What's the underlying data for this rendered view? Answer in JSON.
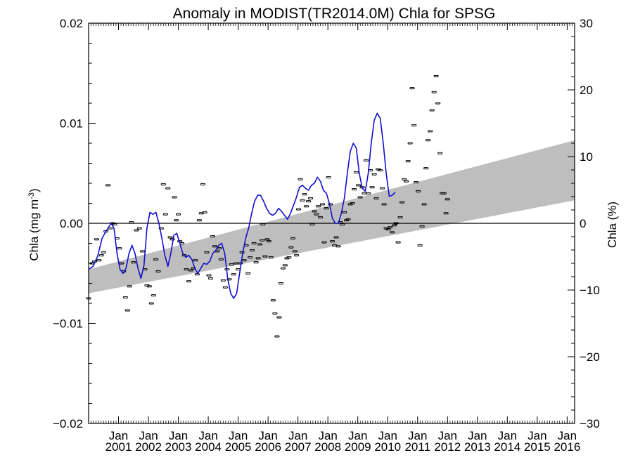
{
  "chart_data": {
    "type": "line",
    "title": "Anomaly in MODIST(TR2014.0M) Chla for SPSG",
    "ylabel_left": "Chla (mg m",
    "ylabel_left_sup": "-3",
    "ylabel_left_close": ")",
    "ylabel_right": "Chla (%)",
    "xlim": [
      2000.0,
      2016.25
    ],
    "ylim_left": [
      -0.02,
      0.02
    ],
    "ylim_right": [
      -30,
      30
    ],
    "left_ticks": [
      {
        "value": 0.02,
        "label": "0.02"
      },
      {
        "value": 0.01,
        "label": "0.01"
      },
      {
        "value": 0.0,
        "label": "0.00"
      },
      {
        "value": -0.01,
        "label": "−0.01"
      },
      {
        "value": -0.02,
        "label": "−0.02"
      }
    ],
    "right_ticks": [
      {
        "value": 30,
        "label": "30"
      },
      {
        "value": 20,
        "label": "20"
      },
      {
        "value": 10,
        "label": "10"
      },
      {
        "value": 0,
        "label": "0"
      },
      {
        "value": -10,
        "label": "−10"
      },
      {
        "value": -20,
        "label": "−20"
      },
      {
        "value": -30,
        "label": "−30"
      }
    ],
    "x_ticks": [
      {
        "value": 2001,
        "month": "Jan",
        "year": "2001"
      },
      {
        "value": 2002,
        "month": "Jan",
        "year": "2002"
      },
      {
        "value": 2003,
        "month": "Jan",
        "year": "2003"
      },
      {
        "value": 2004,
        "month": "Jan",
        "year": "2004"
      },
      {
        "value": 2005,
        "month": "Jan",
        "year": "2005"
      },
      {
        "value": 2006,
        "month": "Jan",
        "year": "2006"
      },
      {
        "value": 2007,
        "month": "Jan",
        "year": "2007"
      },
      {
        "value": 2008,
        "month": "Jan",
        "year": "2008"
      },
      {
        "value": 2009,
        "month": "Jan",
        "year": "2009"
      },
      {
        "value": 2010,
        "month": "Jan",
        "year": "2010"
      },
      {
        "value": 2011,
        "month": "Jan",
        "year": "2011"
      },
      {
        "value": 2012,
        "month": "Jan",
        "year": "2012"
      },
      {
        "value": 2013,
        "month": "Jan",
        "year": "2013"
      },
      {
        "value": 2014,
        "month": "Jan",
        "year": "2014"
      },
      {
        "value": 2015,
        "month": "Jan",
        "year": "2015"
      },
      {
        "value": 2016,
        "month": "Jan",
        "year": "2016"
      }
    ],
    "trend_band": {
      "x": [
        2000.0,
        2016.25
      ],
      "upper": [
        -0.0046,
        0.0083
      ],
      "lower": [
        -0.007,
        0.0023
      ],
      "color": "#bebebe"
    },
    "zero_line": 0.0,
    "monthly_points": [
      [
        2000.0,
        -0.0075
      ],
      [
        2000.12,
        -0.004
      ],
      [
        2000.2,
        -0.0038
      ],
      [
        2000.27,
        -0.0016
      ],
      [
        2000.35,
        -0.0037
      ],
      [
        2000.43,
        -0.0032
      ],
      [
        2000.5,
        -0.0029
      ],
      [
        2000.58,
        -0.0008
      ],
      [
        2000.65,
        0.0038
      ],
      [
        2000.72,
        -0.0005
      ],
      [
        2000.8,
        0.0
      ],
      [
        2000.87,
        -0.0001
      ],
      [
        2000.95,
        -0.0015
      ],
      [
        2001.03,
        -0.0025
      ],
      [
        2001.1,
        -0.004
      ],
      [
        2001.17,
        -0.0048
      ],
      [
        2001.23,
        -0.0074
      ],
      [
        2001.3,
        -0.0087
      ],
      [
        2001.37,
        -0.0063
      ],
      [
        2001.43,
        0.0001
      ],
      [
        2001.5,
        -0.0039
      ],
      [
        2001.6,
        -0.0007
      ],
      [
        2001.7,
        -0.0005
      ],
      [
        2001.8,
        -0.0028
      ],
      [
        2001.88,
        -0.0046
      ],
      [
        2001.95,
        -0.0062
      ],
      [
        2002.03,
        -0.0063
      ],
      [
        2002.1,
        -0.008
      ],
      [
        2002.17,
        -0.0072
      ],
      [
        2002.25,
        -0.0036
      ],
      [
        2002.33,
        -0.0048
      ],
      [
        2002.43,
        -0.0005
      ],
      [
        2002.5,
        0.0039
      ],
      [
        2002.57,
        0.0009
      ],
      [
        2002.65,
        0.0035
      ],
      [
        2002.73,
        -0.0014
      ],
      [
        2002.8,
        -0.0016
      ],
      [
        2002.87,
        0.0026
      ],
      [
        2002.93,
        0.0003
      ],
      [
        2003.0,
        0.0009
      ],
      [
        2003.05,
        -0.0018
      ],
      [
        2003.12,
        -0.002
      ],
      [
        2003.2,
        -0.0032
      ],
      [
        2003.27,
        -0.0046
      ],
      [
        2003.35,
        -0.0058
      ],
      [
        2003.42,
        -0.0047
      ],
      [
        2003.5,
        -0.0045
      ],
      [
        2003.57,
        -0.0037
      ],
      [
        2003.63,
        -0.0051
      ],
      [
        2003.7,
        0.0003
      ],
      [
        2003.77,
        0.001
      ],
      [
        2003.82,
        0.0039
      ],
      [
        2003.88,
        0.0011
      ],
      [
        2003.95,
        -0.0029
      ],
      [
        2004.02,
        -0.0052
      ],
      [
        2004.08,
        -0.0055
      ],
      [
        2004.15,
        -0.0013
      ],
      [
        2004.22,
        -0.0023
      ],
      [
        2004.3,
        -0.0028
      ],
      [
        2004.37,
        -0.0025
      ],
      [
        2004.43,
        -0.0036
      ],
      [
        2004.5,
        -0.0057
      ],
      [
        2004.57,
        -0.0064
      ],
      [
        2004.63,
        -0.0046
      ],
      [
        2004.7,
        -0.0056
      ],
      [
        2004.78,
        -0.0041
      ],
      [
        2004.85,
        -0.0051
      ],
      [
        2004.92,
        -0.004
      ],
      [
        2005.0,
        -0.0046
      ],
      [
        2005.07,
        -0.004
      ],
      [
        2005.13,
        -0.0029
      ],
      [
        2005.2,
        -0.0037
      ],
      [
        2005.27,
        -0.0022
      ],
      [
        2005.33,
        -0.005
      ],
      [
        2005.4,
        -0.0034
      ],
      [
        2005.47,
        -0.0027
      ],
      [
        2005.53,
        -0.002
      ],
      [
        2005.6,
        -0.0039
      ],
      [
        2005.67,
        -0.0035
      ],
      [
        2005.73,
        -0.0021
      ],
      [
        2005.8,
        -0.0017
      ],
      [
        2005.83,
        -0.0001
      ],
      [
        2005.9,
        -0.0033
      ],
      [
        2005.97,
        -0.0016
      ],
      [
        2006.03,
        -0.0018
      ],
      [
        2006.1,
        -0.0034
      ],
      [
        2006.17,
        -0.0077
      ],
      [
        2006.23,
        -0.009
      ],
      [
        2006.3,
        -0.0113
      ],
      [
        2006.37,
        -0.0094
      ],
      [
        2006.43,
        -0.006
      ],
      [
        2006.5,
        -0.0045
      ],
      [
        2006.57,
        -0.0042
      ],
      [
        2006.63,
        -0.0035
      ],
      [
        2006.7,
        -0.0034
      ],
      [
        2006.77,
        -0.0024
      ],
      [
        2006.83,
        -0.0015
      ],
      [
        2006.9,
        -0.0028
      ],
      [
        2006.95,
        -0.0032
      ],
      [
        2007.02,
        0.0014
      ],
      [
        2007.08,
        0.0044
      ],
      [
        2007.15,
        0.0023
      ],
      [
        2007.22,
        0.0029
      ],
      [
        2007.28,
        0.0017
      ],
      [
        2007.35,
        0.0022
      ],
      [
        2007.42,
        0.0025
      ],
      [
        2007.48,
        -0.0001
      ],
      [
        2007.55,
        0.0012
      ],
      [
        2007.62,
        0.0009
      ],
      [
        2007.68,
        0.0017
      ],
      [
        2007.75,
        0.0006
      ],
      [
        2007.82,
        0.0019
      ],
      [
        2007.88,
        -0.0019
      ],
      [
        2007.95,
        0.0015
      ],
      [
        2008.02,
        0.0046
      ],
      [
        2008.08,
        0.0019
      ],
      [
        2008.15,
        -0.0018
      ],
      [
        2008.22,
        -0.0022
      ],
      [
        2008.28,
        -0.0014
      ],
      [
        2008.35,
        -0.0023
      ],
      [
        2008.42,
        0.0001
      ],
      [
        2008.48,
        -0.0001
      ],
      [
        2008.55,
        0.0011
      ],
      [
        2008.62,
        0.0003
      ],
      [
        2008.68,
        0.0004
      ],
      [
        2008.75,
        0.0019
      ],
      [
        2008.82,
        0.002
      ],
      [
        2008.88,
        0.0034
      ],
      [
        2008.95,
        0.0051
      ],
      [
        2009.02,
        0.0038
      ],
      [
        2009.08,
        0.0026
      ],
      [
        2009.15,
        0.0036
      ],
      [
        2009.22,
        0.003
      ],
      [
        2009.28,
        0.0063
      ],
      [
        2009.35,
        0.003
      ],
      [
        2009.42,
        0.0053
      ],
      [
        2009.48,
        0.0036
      ],
      [
        2009.55,
        0.0049
      ],
      [
        2009.62,
        0.0025
      ],
      [
        2009.68,
        0.0054
      ],
      [
        2009.75,
        0.0053
      ],
      [
        2009.82,
        0.0035
      ],
      [
        2009.88,
        0.0019
      ],
      [
        2009.95,
        -0.0005
      ],
      [
        2010.02,
        -0.0006
      ],
      [
        2010.08,
        -0.0004
      ],
      [
        2010.15,
        -0.0009
      ],
      [
        2010.22,
        -0.0002
      ],
      [
        2010.28,
        0.0
      ],
      [
        2010.35,
        -0.0019
      ],
      [
        2010.42,
        0.0006
      ],
      [
        2010.48,
        0.0021
      ],
      [
        2010.55,
        0.0044
      ],
      [
        2010.62,
        0.0042
      ],
      [
        2010.68,
        0.0062
      ],
      [
        2010.75,
        0.008
      ],
      [
        2010.82,
        0.0135
      ],
      [
        2010.88,
        0.0098
      ],
      [
        2010.95,
        0.0041
      ],
      [
        2011.02,
        0.0032
      ],
      [
        2011.08,
        -0.0022
      ],
      [
        2011.15,
        -0.0003
      ],
      [
        2011.22,
        0.0019
      ],
      [
        2011.28,
        0.0055
      ],
      [
        2011.35,
        0.0083
      ],
      [
        2011.42,
        0.0092
      ],
      [
        2011.48,
        0.0113
      ],
      [
        2011.55,
        0.0131
      ],
      [
        2011.62,
        0.0147
      ],
      [
        2011.68,
        0.012
      ],
      [
        2011.75,
        0.007
      ],
      [
        2011.82,
        0.003
      ],
      [
        2011.88,
        0.003
      ],
      [
        2011.95,
        0.001
      ],
      [
        2012.0,
        0.0024
      ]
    ],
    "smooth_line": {
      "color": "#1010d0",
      "points": [
        [
          2000.0,
          -0.0046
        ],
        [
          2000.15,
          -0.0043
        ],
        [
          2000.3,
          -0.0033
        ],
        [
          2000.45,
          -0.0015
        ],
        [
          2000.6,
          -0.0007
        ],
        [
          2000.75,
          0.0
        ],
        [
          2000.85,
          -0.0005
        ],
        [
          2000.95,
          -0.003
        ],
        [
          2001.05,
          -0.0046
        ],
        [
          2001.15,
          -0.005
        ],
        [
          2001.25,
          -0.0045
        ],
        [
          2001.35,
          -0.003
        ],
        [
          2001.45,
          -0.0022
        ],
        [
          2001.55,
          -0.003
        ],
        [
          2001.65,
          -0.0045
        ],
        [
          2001.75,
          -0.0055
        ],
        [
          2001.85,
          -0.0042
        ],
        [
          2001.95,
          -0.0005
        ],
        [
          2002.05,
          0.0011
        ],
        [
          2002.15,
          0.0009
        ],
        [
          2002.25,
          0.0011
        ],
        [
          2002.35,
          0.0
        ],
        [
          2002.45,
          -0.0015
        ],
        [
          2002.55,
          -0.0032
        ],
        [
          2002.65,
          -0.0043
        ],
        [
          2002.75,
          -0.003
        ],
        [
          2002.85,
          -0.0012
        ],
        [
          2002.95,
          -0.001
        ],
        [
          2003.05,
          -0.002
        ],
        [
          2003.15,
          -0.003
        ],
        [
          2003.25,
          -0.0034
        ],
        [
          2003.35,
          -0.0032
        ],
        [
          2003.45,
          -0.0036
        ],
        [
          2003.55,
          -0.0045
        ],
        [
          2003.65,
          -0.005
        ],
        [
          2003.75,
          -0.0045
        ],
        [
          2003.85,
          -0.004
        ],
        [
          2003.95,
          -0.0041
        ],
        [
          2004.05,
          -0.0038
        ],
        [
          2004.15,
          -0.003
        ],
        [
          2004.25,
          -0.0027
        ],
        [
          2004.35,
          -0.0022
        ],
        [
          2004.45,
          -0.002
        ],
        [
          2004.55,
          -0.003
        ],
        [
          2004.65,
          -0.0055
        ],
        [
          2004.75,
          -0.007
        ],
        [
          2004.85,
          -0.0075
        ],
        [
          2004.95,
          -0.007
        ],
        [
          2005.05,
          -0.005
        ],
        [
          2005.15,
          -0.003
        ],
        [
          2005.25,
          -0.0015
        ],
        [
          2005.35,
          -0.0005
        ],
        [
          2005.45,
          0.001
        ],
        [
          2005.55,
          0.0022
        ],
        [
          2005.65,
          0.0028
        ],
        [
          2005.75,
          0.0028
        ],
        [
          2005.85,
          0.0022
        ],
        [
          2005.95,
          0.0015
        ],
        [
          2006.05,
          0.001
        ],
        [
          2006.15,
          0.0008
        ],
        [
          2006.25,
          0.001
        ],
        [
          2006.35,
          0.0015
        ],
        [
          2006.45,
          0.0012
        ],
        [
          2006.55,
          0.0008
        ],
        [
          2006.65,
          0.0004
        ],
        [
          2006.75,
          0.001
        ],
        [
          2006.85,
          0.0018
        ],
        [
          2006.95,
          0.0026
        ],
        [
          2007.05,
          0.0036
        ],
        [
          2007.15,
          0.0038
        ],
        [
          2007.25,
          0.0035
        ],
        [
          2007.35,
          0.0033
        ],
        [
          2007.45,
          0.0038
        ],
        [
          2007.55,
          0.004
        ],
        [
          2007.65,
          0.0046
        ],
        [
          2007.75,
          0.0042
        ],
        [
          2007.85,
          0.0033
        ],
        [
          2007.95,
          0.003
        ],
        [
          2008.05,
          0.002
        ],
        [
          2008.15,
          0.0005
        ],
        [
          2008.25,
          0.0
        ],
        [
          2008.35,
          0.0
        ],
        [
          2008.45,
          0.001
        ],
        [
          2008.55,
          0.0025
        ],
        [
          2008.65,
          0.005
        ],
        [
          2008.75,
          0.0072
        ],
        [
          2008.85,
          0.008
        ],
        [
          2008.95,
          0.0075
        ],
        [
          2009.05,
          0.005
        ],
        [
          2009.15,
          0.0035
        ],
        [
          2009.25,
          0.0032
        ],
        [
          2009.35,
          0.005
        ],
        [
          2009.45,
          0.008
        ],
        [
          2009.55,
          0.0103
        ],
        [
          2009.65,
          0.011
        ],
        [
          2009.75,
          0.0105
        ],
        [
          2009.85,
          0.008
        ],
        [
          2009.95,
          0.005
        ],
        [
          2010.05,
          0.0027
        ],
        [
          2010.15,
          0.0028
        ],
        [
          2010.25,
          0.0031
        ]
      ]
    }
  }
}
